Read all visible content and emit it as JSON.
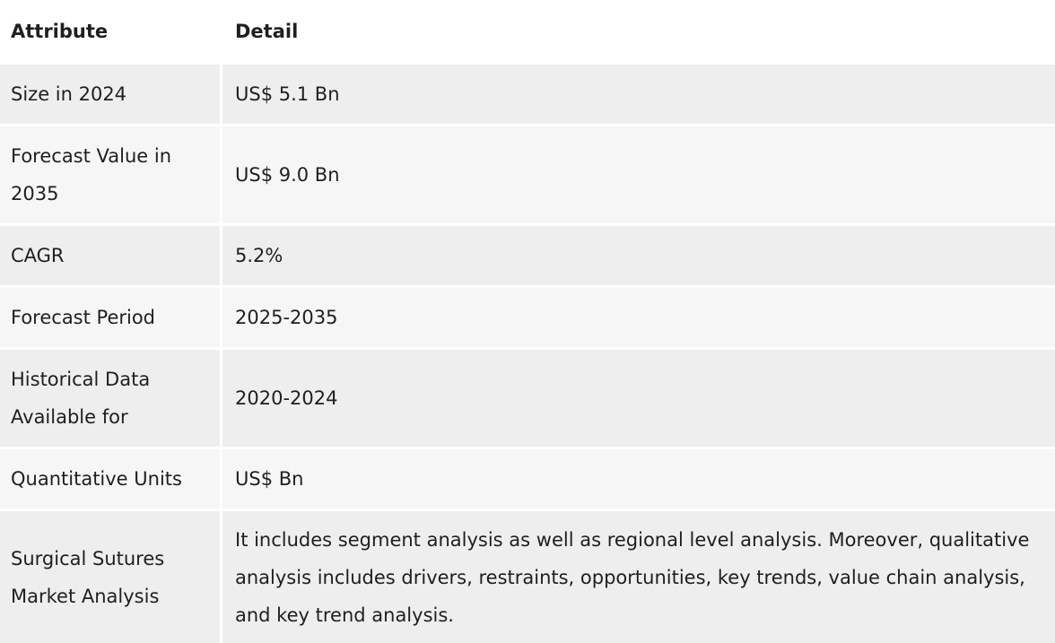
{
  "table": {
    "headers": [
      "Attribute",
      "Detail"
    ],
    "rows": [
      {
        "attribute": "Size in 2024",
        "detail": "US$ 5.1 Bn"
      },
      {
        "attribute": "Forecast Value in 2035",
        "detail": "US$ 9.0 Bn"
      },
      {
        "attribute": "CAGR",
        "detail": "5.2%"
      },
      {
        "attribute": "Forecast Period",
        "detail": "2025-2035"
      },
      {
        "attribute": "Historical Data Available for",
        "detail": "2020-2024"
      },
      {
        "attribute": "Quantitative Units",
        "detail": "US$ Bn"
      },
      {
        "attribute": "Surgical Sutures Market Analysis",
        "detail": "It includes segment analysis as well as regional level analysis. Moreover, qualitative analysis includes drivers, restraints, opportunities, key trends, value chain analysis, and key trend analysis."
      }
    ]
  }
}
